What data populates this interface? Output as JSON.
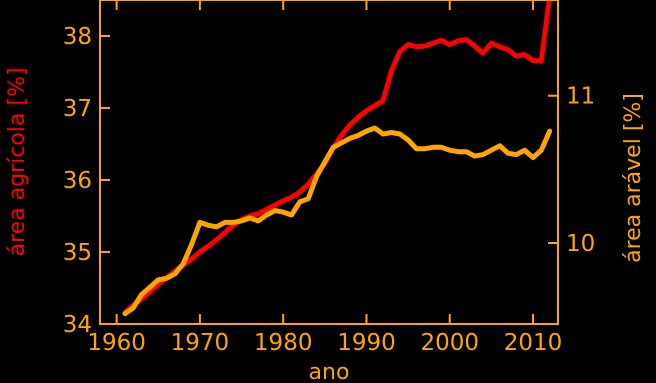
{
  "chart_data": {
    "type": "line",
    "xlabel": "ano",
    "ylabel_left": "área agrícola [%]",
    "ylabel_right": "área arável [%]",
    "xlim": [
      1958,
      2013
    ],
    "ylim_left": [
      34,
      38.5
    ],
    "ylim_right": [
      9.45,
      11.65
    ],
    "xticks": [
      1960,
      1970,
      1980,
      1990,
      2000,
      2010
    ],
    "yticks_left": [
      34,
      35,
      36,
      37,
      38
    ],
    "yticks_right": [
      10,
      11
    ],
    "grid": false,
    "axis_color": "#FFA500",
    "series": [
      {
        "axis": "left",
        "color": "#FF0000",
        "x": [
          1961,
          1962,
          1963,
          1964,
          1965,
          1966,
          1967,
          1968,
          1969,
          1970,
          1971,
          1972,
          1973,
          1974,
          1975,
          1976,
          1977,
          1978,
          1979,
          1980,
          1981,
          1982,
          1983,
          1984,
          1985,
          1986,
          1987,
          1988,
          1989,
          1990,
          1991,
          1992,
          1993,
          1994,
          1995,
          1996,
          1997,
          1998,
          1999,
          2000,
          2001,
          2002,
          2003,
          2004,
          2005,
          2006,
          2007,
          2008,
          2009,
          2010,
          2011,
          2012
        ],
        "values": [
          34.16,
          34.26,
          34.35,
          34.45,
          34.55,
          34.64,
          34.73,
          34.82,
          34.9,
          35.0,
          35.08,
          35.17,
          35.27,
          35.37,
          35.45,
          35.5,
          35.53,
          35.59,
          35.65,
          35.71,
          35.76,
          35.83,
          35.94,
          36.08,
          36.23,
          36.44,
          36.62,
          36.76,
          36.87,
          36.96,
          37.03,
          37.1,
          37.52,
          37.78,
          37.88,
          37.85,
          37.86,
          37.9,
          37.94,
          37.88,
          37.93,
          37.95,
          37.86,
          37.76,
          37.9,
          37.85,
          37.81,
          37.72,
          37.74,
          37.66,
          37.65,
          38.55
        ]
      },
      {
        "axis": "right",
        "color": "#FFA500",
        "x": [
          1961,
          1962,
          1963,
          1964,
          1965,
          1966,
          1967,
          1968,
          1969,
          1970,
          1971,
          1972,
          1973,
          1974,
          1975,
          1976,
          1977,
          1978,
          1979,
          1980,
          1981,
          1982,
          1983,
          1984,
          1985,
          1986,
          1987,
          1988,
          1989,
          1990,
          1991,
          1992,
          1993,
          1994,
          1995,
          1996,
          1997,
          1998,
          1999,
          2000,
          2001,
          2002,
          2003,
          2004,
          2005,
          2006,
          2007,
          2008,
          2009,
          2010,
          2011,
          2012
        ],
        "values": [
          9.52,
          9.56,
          9.65,
          9.7,
          9.75,
          9.76,
          9.79,
          9.86,
          9.99,
          10.14,
          10.12,
          10.11,
          10.14,
          10.14,
          10.15,
          10.17,
          10.15,
          10.19,
          10.22,
          10.21,
          10.19,
          10.28,
          10.3,
          10.45,
          10.55,
          10.65,
          10.68,
          10.71,
          10.73,
          10.76,
          10.78,
          10.74,
          10.75,
          10.74,
          10.7,
          10.64,
          10.64,
          10.65,
          10.65,
          10.63,
          10.62,
          10.62,
          10.59,
          10.6,
          10.63,
          10.66,
          10.61,
          10.6,
          10.63,
          10.58,
          10.63,
          10.76
        ]
      }
    ]
  }
}
